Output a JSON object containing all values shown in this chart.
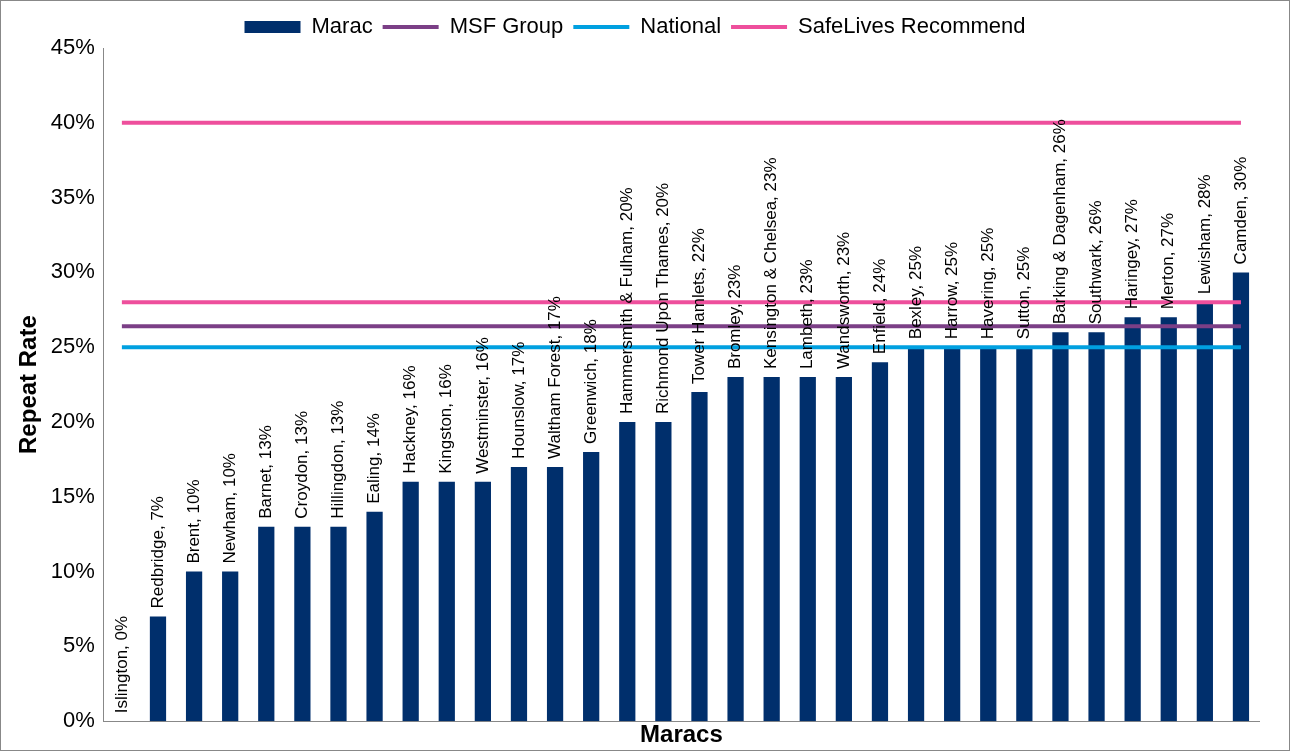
{
  "chart_data": {
    "type": "bar",
    "xlabel": "Maracs",
    "ylabel": "Repeat Rate",
    "categories": [
      null,
      null,
      null,
      null,
      null,
      null,
      null,
      null,
      null,
      null,
      null,
      null,
      null,
      null,
      null,
      null,
      null,
      null,
      null,
      null,
      null,
      null,
      null,
      null,
      null,
      null,
      null,
      null,
      null,
      null,
      null,
      null
    ],
    "series": [
      {
        "name": "Marac",
        "color": "#002f6c",
        "values": [
          0,
          7,
          10,
          10,
          13,
          13,
          13,
          14,
          16,
          16,
          16,
          17,
          17,
          18,
          20,
          20,
          22,
          23,
          23,
          23,
          23,
          24,
          25,
          25,
          25,
          25,
          26,
          26,
          27,
          27,
          28,
          30
        ],
        "value_labels": [
          "Islington, 0%",
          "Redbridge, 7%",
          "Brent, 10%",
          "Newham, 10%",
          "Barnet, 13%",
          "Croydon, 13%",
          "Hillingdon, 13%",
          "Ealing, 14%",
          "Hackney, 16%",
          "Kingston, 16%",
          "Westminster, 16%",
          "Hounslow, 17%",
          "Waltham Forest, 17%",
          "Greenwich, 18%",
          "Hammersmith & Fulham, 20%",
          "Richmond Upon Thames, 20%",
          "Tower Hamlets, 22%",
          "Bromley, 23%",
          "Kensington & Chelsea, 23%",
          "Lambeth, 23%",
          "Wandsworth, 23%",
          "Enfield, 24%",
          "Bexley, 25%",
          "Harrow, 25%",
          "Havering, 25%",
          "Sutton, 25%",
          "Barking & Dagenham, 26%",
          "Southwark, 26%",
          "Haringey, 27%",
          "Merton, 27%",
          "Lewisham, 28%",
          "Camden, 30%"
        ]
      },
      {
        "name": "MSF Group",
        "type": "line",
        "color": "#7b3f86",
        "values": [
          26.4,
          26.4,
          26.4,
          26.4,
          26.4,
          26.4,
          26.4,
          26.4,
          26.4,
          26.4,
          26.4,
          26.4,
          26.4,
          26.4,
          26.4,
          26.4,
          26.4,
          26.4,
          26.4,
          26.4,
          26.4,
          26.4,
          26.4,
          26.4,
          26.4,
          26.4,
          26.4,
          26.4,
          26.4,
          26.4,
          26.4,
          26.4
        ]
      },
      {
        "name": "National",
        "type": "line",
        "color": "#00a0e0",
        "values": [
          25,
          25,
          25,
          25,
          25,
          25,
          25,
          25,
          25,
          25,
          25,
          25,
          25,
          25,
          25,
          25,
          25,
          25,
          25,
          25,
          25,
          25,
          25,
          25,
          25,
          25,
          25,
          25,
          25,
          25,
          25,
          25
        ]
      },
      {
        "name": "SafeLives Recommend",
        "type": "line",
        "color": "#ee4f9c",
        "values": [
          40,
          40,
          40,
          40,
          40,
          40,
          40,
          40,
          40,
          40,
          40,
          40,
          40,
          40,
          40,
          40,
          40,
          40,
          40,
          40,
          40,
          40,
          40,
          40,
          40,
          40,
          40,
          40,
          40,
          40,
          40,
          40
        ]
      },
      {
        "type": "line",
        "color": "#ee4f9c",
        "values": [
          28,
          28,
          28,
          28,
          28,
          28,
          28,
          28,
          28,
          28,
          28,
          28,
          28,
          28,
          28,
          28,
          28,
          28,
          28,
          28,
          28,
          28,
          28,
          28,
          28,
          28,
          28,
          28,
          28,
          28,
          28,
          28
        ]
      }
    ],
    "ylim": [
      0,
      45
    ],
    "yticks": [
      {
        "value": 0,
        "label": "0%"
      },
      {
        "value": 5,
        "label": "5%"
      },
      {
        "value": 10,
        "label": "10%"
      },
      {
        "value": 15,
        "label": "15%"
      },
      {
        "value": 20,
        "label": "20%"
      },
      {
        "value": 25,
        "label": "25%"
      },
      {
        "value": 30,
        "label": "30%"
      },
      {
        "value": 35,
        "label": "35%"
      },
      {
        "value": 40,
        "label": "40%"
      },
      {
        "value": 45,
        "label": "45%"
      }
    ],
    "tick_labels": "y",
    "grid": false,
    "legend": "top",
    "marker": "none",
    "line_style": "solid"
  }
}
